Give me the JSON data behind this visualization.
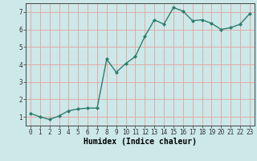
{
  "x": [
    0,
    1,
    2,
    3,
    4,
    5,
    6,
    7,
    8,
    9,
    10,
    11,
    12,
    13,
    14,
    15,
    16,
    17,
    18,
    19,
    20,
    21,
    22,
    23
  ],
  "y": [
    1.2,
    1.0,
    0.85,
    1.05,
    1.35,
    1.45,
    1.5,
    1.5,
    4.3,
    3.55,
    4.05,
    4.45,
    5.6,
    6.55,
    6.3,
    7.25,
    7.05,
    6.5,
    6.55,
    6.35,
    6.0,
    6.1,
    6.3,
    6.9
  ],
  "line_color": "#2e7d6e",
  "marker": "D",
  "marker_size": 2.0,
  "line_width": 1.0,
  "xlabel": "Humidex (Indice chaleur)",
  "xlim": [
    -0.5,
    23.5
  ],
  "ylim": [
    0.5,
    7.5
  ],
  "yticks": [
    1,
    2,
    3,
    4,
    5,
    6,
    7
  ],
  "xticks": [
    0,
    1,
    2,
    3,
    4,
    5,
    6,
    7,
    8,
    9,
    10,
    11,
    12,
    13,
    14,
    15,
    16,
    17,
    18,
    19,
    20,
    21,
    22,
    23
  ],
  "xtick_labels": [
    "0",
    "1",
    "2",
    "3",
    "4",
    "5",
    "6",
    "7",
    "8",
    "9",
    "10",
    "11",
    "12",
    "13",
    "14",
    "15",
    "16",
    "17",
    "18",
    "19",
    "20",
    "21",
    "22",
    "23"
  ],
  "grid_color": "#e8a0a0",
  "bg_color": "#cce8e8",
  "tick_fontsize": 5.5,
  "xlabel_fontsize": 7,
  "xlabel_fontweight": "bold"
}
